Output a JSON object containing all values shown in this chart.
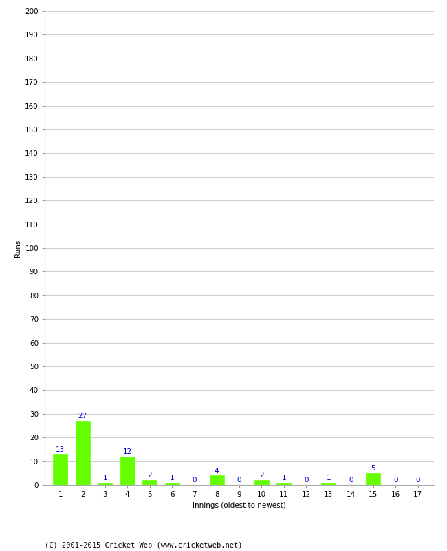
{
  "innings": [
    1,
    2,
    3,
    4,
    5,
    6,
    7,
    8,
    9,
    10,
    11,
    12,
    13,
    14,
    15,
    16,
    17
  ],
  "runs": [
    13,
    27,
    1,
    12,
    2,
    1,
    0,
    4,
    0,
    2,
    1,
    0,
    1,
    0,
    5,
    0,
    0
  ],
  "bar_color": "#66ff00",
  "bar_edge_color": "#66ff00",
  "label_color": "#0000cc",
  "ylabel": "Runs",
  "xlabel": "Innings (oldest to newest)",
  "ylim": [
    0,
    200
  ],
  "yticks": [
    0,
    10,
    20,
    30,
    40,
    50,
    60,
    70,
    80,
    90,
    100,
    110,
    120,
    130,
    140,
    150,
    160,
    170,
    180,
    190,
    200
  ],
  "grid_color": "#cccccc",
  "background_color": "#ffffff",
  "footer": "(C) 2001-2015 Cricket Web (www.cricketweb.net)",
  "label_fontsize": 7.5,
  "axis_fontsize": 7.5,
  "ylabel_fontsize": 7.5,
  "footer_fontsize": 7.5
}
